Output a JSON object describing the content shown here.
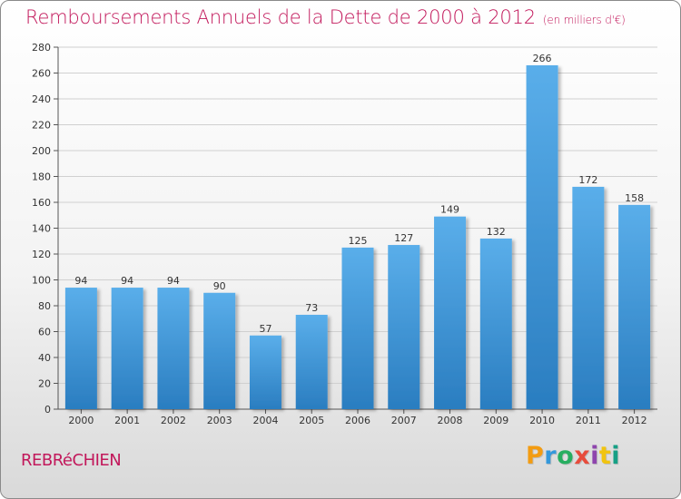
{
  "header": {
    "title": "Remboursements Annuels de la Dette de 2000 à 2012",
    "unit": "(en milliers d'€)"
  },
  "footer": {
    "commune": "REBRéCHIEN",
    "brand_letters": [
      "P",
      "r",
      "o",
      "x",
      "i",
      "t",
      "i"
    ],
    "brand_colors": [
      "#f39c12",
      "#3498db",
      "#27ae60",
      "#e74c3c",
      "#8e44ad",
      "#f1c40f",
      "#16a085"
    ]
  },
  "colors": {
    "bar_top": "#5aaeea",
    "bar_bottom": "#2a7dc0",
    "title": "#c2185b",
    "grid": "#d0d0d0"
  },
  "chart_data": {
    "type": "bar",
    "categories": [
      "2000",
      "2001",
      "2002",
      "2003",
      "2004",
      "2005",
      "2006",
      "2007",
      "2008",
      "2009",
      "2010",
      "2011",
      "2012"
    ],
    "values": [
      94,
      94,
      94,
      90,
      57,
      73,
      125,
      127,
      149,
      132,
      266,
      172,
      158
    ],
    "ylim": [
      0,
      280
    ],
    "yticks": [
      0,
      20,
      40,
      60,
      80,
      100,
      120,
      140,
      160,
      180,
      200,
      220,
      240,
      260,
      280
    ],
    "grid": true
  }
}
